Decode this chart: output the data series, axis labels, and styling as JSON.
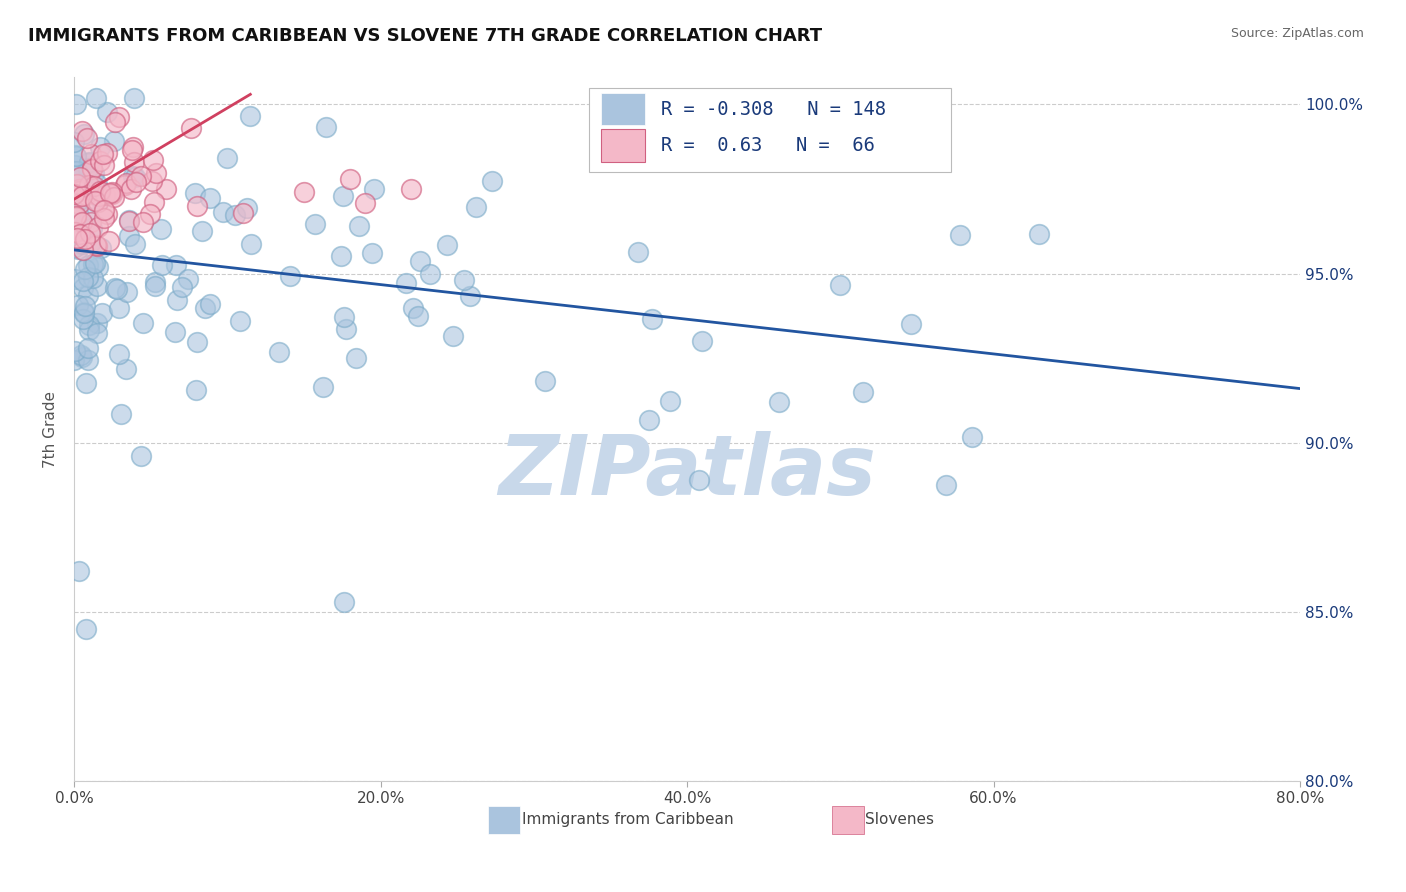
{
  "title": "IMMIGRANTS FROM CARIBBEAN VS SLOVENE 7TH GRADE CORRELATION CHART",
  "source": "Source: ZipAtlas.com",
  "ylabel": "7th Grade",
  "xlim": [
    0.0,
    0.8
  ],
  "ylim": [
    0.8,
    1.008
  ],
  "xticks": [
    0.0,
    0.2,
    0.4,
    0.6,
    0.8
  ],
  "xtick_labels": [
    "0.0%",
    "20.0%",
    "40.0%",
    "60.0%",
    "80.0%"
  ],
  "ytick_labels": [
    "80.0%",
    "85.0%",
    "90.0%",
    "95.0%",
    "100.0%"
  ],
  "yticks": [
    0.8,
    0.85,
    0.9,
    0.95,
    1.0
  ],
  "blue_R": -0.308,
  "blue_N": 148,
  "pink_R": 0.63,
  "pink_N": 66,
  "blue_color": "#aac4de",
  "blue_edge_color": "#7aaac8",
  "blue_line_color": "#2255a0",
  "pink_color": "#f4b8c8",
  "pink_edge_color": "#d06080",
  "pink_line_color": "#d04060",
  "watermark": "ZIPatlas",
  "watermark_color": "#c8d8ea",
  "title_fontsize": 13,
  "legend_R_color": "#1a3a7a",
  "legend_label1": "Immigrants from Caribbean",
  "legend_label2": "Slovenes",
  "grid_color": "#cccccc",
  "background_color": "#ffffff",
  "blue_trend": [
    0.0,
    0.8,
    0.957,
    0.916
  ],
  "pink_trend": [
    0.0,
    0.115,
    0.972,
    1.003
  ]
}
